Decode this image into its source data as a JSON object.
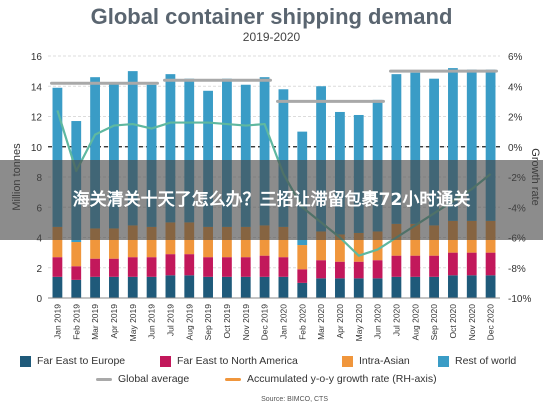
{
  "overlay_caption": "海关清关十天了怎么办？三招让滞留包裹72小时通关",
  "source": "Source: BIMCO, CTS",
  "chart_data": {
    "type": "bar",
    "stacked": true,
    "title": "Global container shipping demand",
    "subtitle": "2019-2020",
    "ylabel": "Million tonnes",
    "y2label": "Growth rate",
    "ylim": [
      0,
      16
    ],
    "y2lim": [
      -10,
      6
    ],
    "yticks": [
      0,
      2,
      4,
      6,
      8,
      10,
      12,
      14,
      16
    ],
    "y2ticks": [
      "6%",
      "4%",
      "2%",
      "0%",
      "-2%",
      "-4%",
      "-6%",
      "-8%",
      "-10%"
    ],
    "y2tick_values": [
      6,
      4,
      2,
      0,
      -2,
      -4,
      -6,
      -8,
      -10
    ],
    "grid": true,
    "legend_position": "bottom",
    "categories": [
      "Jan 2019",
      "Feb 2019",
      "Mar 2019",
      "Apr 2019",
      "May 2019",
      "Jun 2019",
      "Jul 2019",
      "Aug 2019",
      "Sep 2019",
      "Oct 2019",
      "Nov 2019",
      "Dec 2019",
      "Jan 2020",
      "Feb 2020",
      "Mar 2020",
      "Apr 2020",
      "May 2020",
      "Jun 2020",
      "Jul 2020",
      "Aug 2020",
      "Sep 2020",
      "Oct 2020",
      "Nov 2020",
      "Dec 2020"
    ],
    "series": [
      {
        "name": "Far East to Europe",
        "color": "#1f5a7a",
        "values": [
          1.4,
          1.2,
          1.4,
          1.4,
          1.4,
          1.4,
          1.5,
          1.5,
          1.4,
          1.4,
          1.4,
          1.4,
          1.4,
          1.0,
          1.3,
          1.3,
          1.3,
          1.3,
          1.4,
          1.4,
          1.4,
          1.5,
          1.5,
          1.5
        ]
      },
      {
        "name": "Far East to North America",
        "color": "#c2185b",
        "values": [
          1.3,
          0.9,
          1.2,
          1.2,
          1.3,
          1.3,
          1.4,
          1.4,
          1.3,
          1.3,
          1.3,
          1.4,
          1.3,
          0.9,
          1.2,
          1.1,
          1.1,
          1.2,
          1.4,
          1.4,
          1.4,
          1.5,
          1.5,
          1.5
        ]
      },
      {
        "name": "Intra-Asian",
        "color": "#f0963c",
        "values": [
          2.0,
          1.6,
          2.0,
          2.0,
          2.1,
          2.0,
          2.1,
          2.1,
          2.0,
          2.0,
          2.0,
          2.0,
          2.0,
          1.6,
          1.9,
          1.8,
          1.9,
          1.9,
          2.1,
          2.1,
          2.0,
          2.1,
          2.1,
          2.1
        ]
      },
      {
        "name": "Rest of world",
        "color": "#3a9cc6",
        "values": [
          9.2,
          8.0,
          10.0,
          9.6,
          10.2,
          9.4,
          9.8,
          9.5,
          9.0,
          9.8,
          9.4,
          9.8,
          9.1,
          7.5,
          9.6,
          8.1,
          7.8,
          8.7,
          9.9,
          10.0,
          9.7,
          10.1,
          10.0,
          10.0
        ]
      }
    ],
    "global_average": {
      "name": "Global average",
      "color": "#a9a9a9",
      "segments": [
        {
          "from": 0,
          "to": 5,
          "value": 14.2
        },
        {
          "from": 6,
          "to": 11,
          "value": 14.4
        },
        {
          "from": 12,
          "to": 17,
          "value": 13.0
        },
        {
          "from": 18,
          "to": 23,
          "value": 15.0
        }
      ]
    },
    "growth_rate": {
      "name": "Accumulated y-o-y growth rate (RH-axis)",
      "color": "#5fb8a0",
      "axis": "right",
      "values": [
        2.4,
        -1.6,
        0.8,
        1.4,
        1.5,
        1.2,
        1.6,
        1.6,
        1.6,
        1.5,
        1.4,
        1.5,
        -1.8,
        -4.0,
        -5.0,
        -6.0,
        -7.2,
        -6.8,
        -6.0,
        -5.2,
        -4.4,
        -3.6,
        -2.8,
        -1.8
      ]
    }
  }
}
